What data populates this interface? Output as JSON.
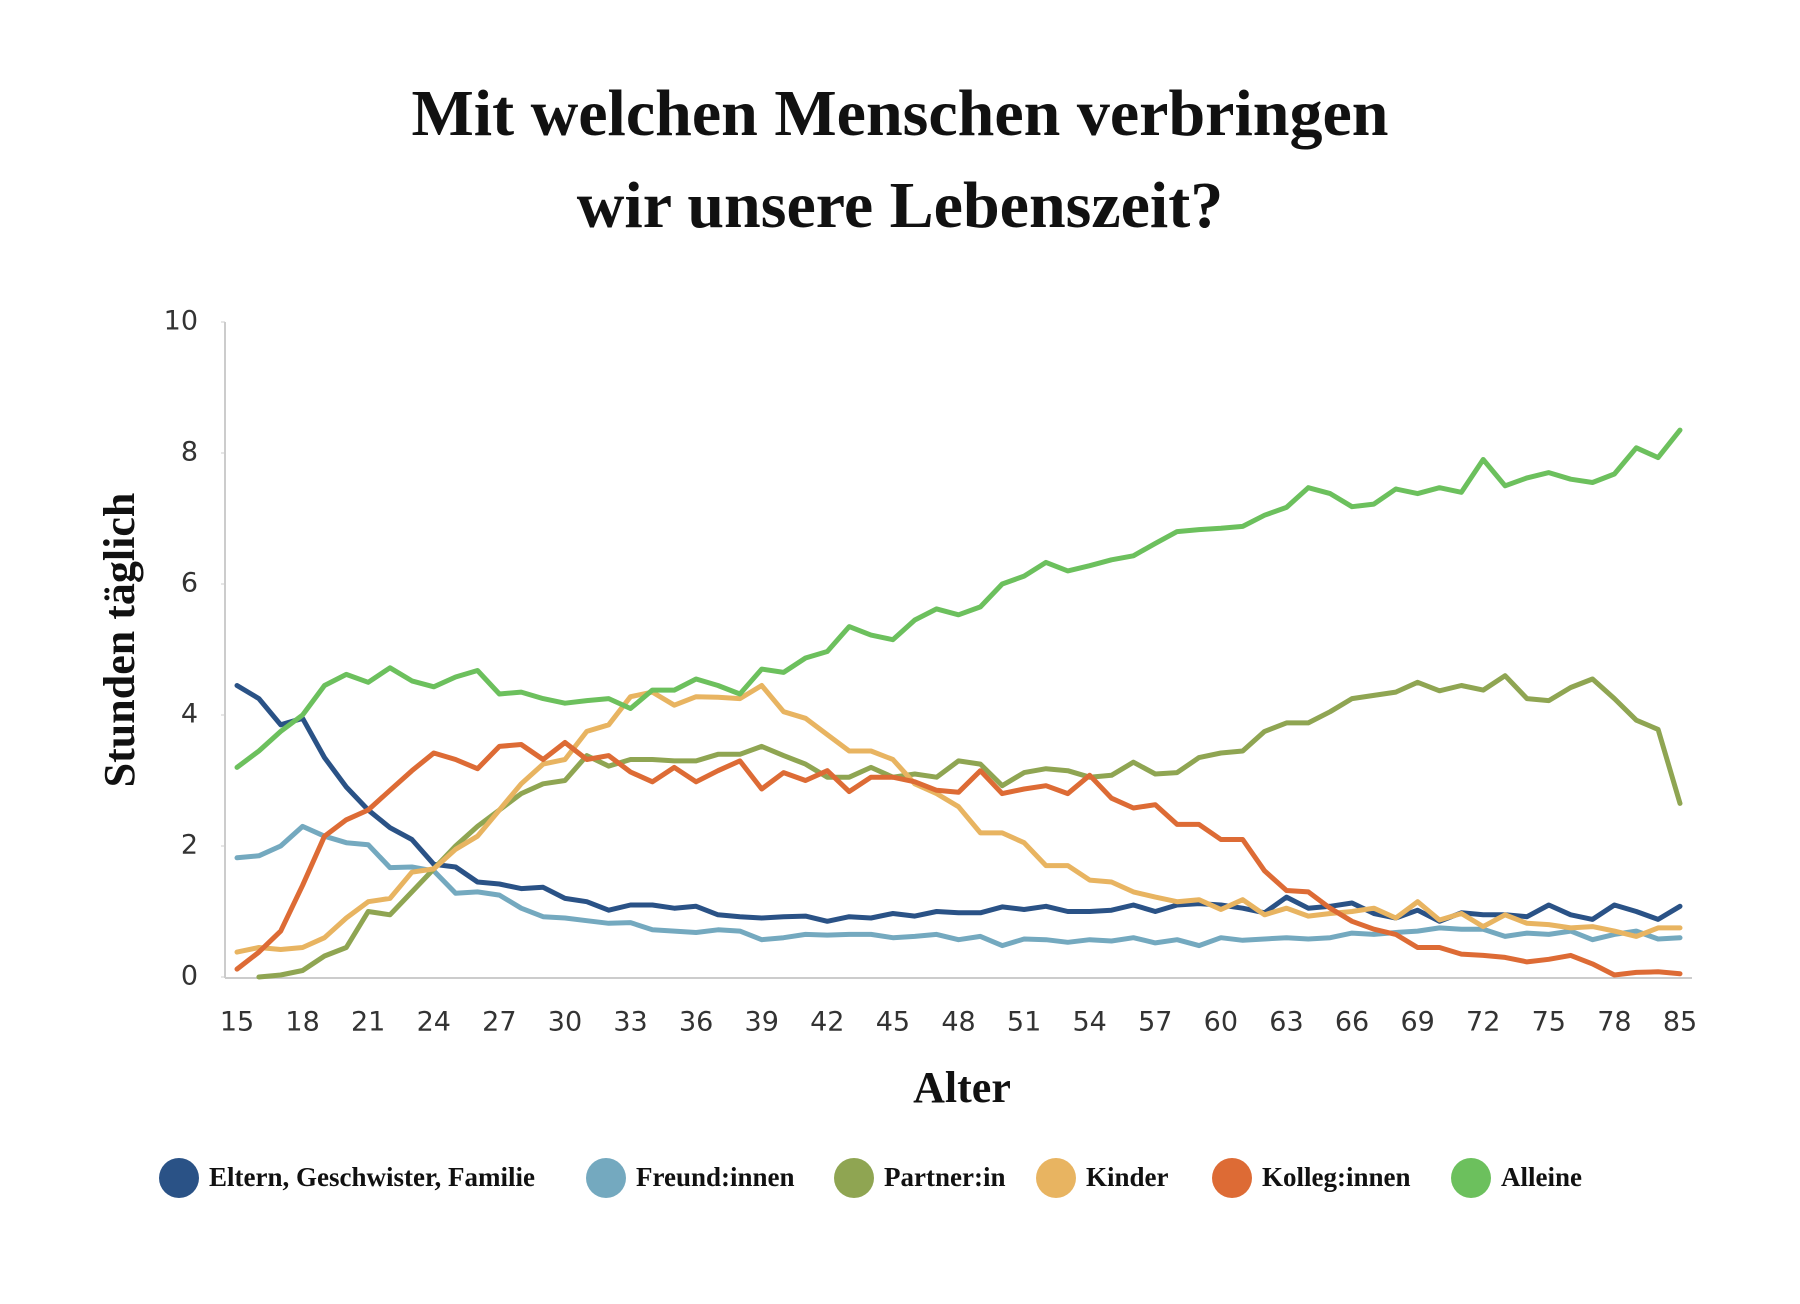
{
  "chart_data": {
    "type": "line",
    "title": [
      "Mit welchen Menschen verbringen",
      "wir unsere Lebenszeit?"
    ],
    "x_label": "Alter",
    "y_label": "Stunden täglich",
    "categories": [
      "15",
      null,
      null,
      "18",
      null,
      null,
      "21",
      null,
      null,
      "24",
      null,
      null,
      "27",
      null,
      null,
      "30",
      null,
      null,
      "33",
      null,
      null,
      "36",
      null,
      null,
      "39",
      null,
      null,
      "42",
      null,
      null,
      "45",
      null,
      null,
      "48",
      null,
      null,
      "51",
      null,
      null,
      "54",
      null,
      null,
      "57",
      null,
      null,
      "60",
      null,
      null,
      "63",
      null,
      null,
      "66",
      null,
      null,
      "69",
      null,
      null,
      "72",
      null,
      null,
      "75",
      null,
      null,
      "78",
      null,
      null,
      "85"
    ],
    "ylim": [
      0,
      10
    ],
    "yticks": [
      0,
      2,
      4,
      6,
      8,
      10
    ],
    "grid": false,
    "legend": "bottom",
    "series": [
      {
        "name": "Eltern, Geschwister, Familie",
        "color": "#2a5286",
        "values": [
          4.45,
          4.25,
          3.85,
          3.95,
          3.35,
          2.9,
          2.55,
          2.28,
          2.1,
          1.72,
          1.68,
          1.45,
          1.42,
          1.35,
          1.37,
          1.2,
          1.15,
          1.02,
          1.1,
          1.1,
          1.05,
          1.08,
          0.95,
          0.92,
          0.9,
          0.92,
          0.93,
          0.85,
          0.92,
          0.9,
          0.97,
          0.93,
          1.0,
          0.98,
          0.98,
          1.07,
          1.03,
          1.08,
          1.0,
          1.0,
          1.02,
          1.1,
          1.0,
          1.1,
          1.12,
          1.1,
          1.05,
          0.98,
          1.22,
          1.05,
          1.08,
          1.13,
          0.97,
          0.9,
          1.02,
          0.85,
          0.98,
          0.95,
          0.95,
          0.92,
          1.1,
          0.95,
          0.88,
          1.1,
          1.0,
          0.88,
          1.08
        ]
      },
      {
        "name": "Freund:innen",
        "color": "#74a9bf",
        "values": [
          1.82,
          1.85,
          2.0,
          2.3,
          2.15,
          2.05,
          2.02,
          1.67,
          1.68,
          1.62,
          1.28,
          1.3,
          1.25,
          1.05,
          0.92,
          0.9,
          0.86,
          0.82,
          0.83,
          0.72,
          0.7,
          0.68,
          0.72,
          0.7,
          0.57,
          0.6,
          0.65,
          0.64,
          0.65,
          0.65,
          0.6,
          0.62,
          0.65,
          0.57,
          0.62,
          0.48,
          0.58,
          0.57,
          0.53,
          0.57,
          0.55,
          0.6,
          0.52,
          0.57,
          0.48,
          0.6,
          0.56,
          0.58,
          0.6,
          0.58,
          0.6,
          0.67,
          0.65,
          0.68,
          0.7,
          0.75,
          0.73,
          0.73,
          0.62,
          0.67,
          0.65,
          0.7,
          0.57,
          0.65,
          0.7,
          0.58,
          0.6
        ]
      },
      {
        "name": "Partner:in",
        "color": "#8fa552",
        "values": [
          null,
          0.0,
          0.03,
          0.1,
          0.32,
          0.45,
          1.0,
          0.95,
          1.3,
          1.65,
          2.0,
          2.3,
          2.55,
          2.8,
          2.95,
          3.0,
          3.38,
          3.22,
          3.32,
          3.32,
          3.3,
          3.3,
          3.4,
          3.4,
          3.52,
          3.38,
          3.25,
          3.05,
          3.05,
          3.2,
          3.05,
          3.1,
          3.05,
          3.3,
          3.25,
          2.92,
          3.12,
          3.18,
          3.15,
          3.05,
          3.08,
          3.28,
          3.1,
          3.12,
          3.35,
          3.42,
          3.45,
          3.75,
          3.88,
          3.88,
          4.05,
          4.25,
          4.3,
          4.35,
          4.5,
          4.37,
          4.45,
          4.38,
          4.6,
          4.25,
          4.22,
          4.42,
          4.55,
          4.25,
          3.92,
          3.78,
          2.65
        ]
      },
      {
        "name": "Kinder",
        "color": "#e8b461",
        "values": [
          0.38,
          0.45,
          0.42,
          0.45,
          0.6,
          0.9,
          1.15,
          1.2,
          1.6,
          1.65,
          1.95,
          2.15,
          2.55,
          2.95,
          3.25,
          3.32,
          3.75,
          3.85,
          4.28,
          4.35,
          4.15,
          4.28,
          4.27,
          4.25,
          4.45,
          4.05,
          3.95,
          3.7,
          3.45,
          3.45,
          3.32,
          2.95,
          2.8,
          2.6,
          2.2,
          2.2,
          2.05,
          1.7,
          1.7,
          1.48,
          1.45,
          1.3,
          1.22,
          1.15,
          1.18,
          1.03,
          1.18,
          0.95,
          1.05,
          0.93,
          0.97,
          1.0,
          1.05,
          0.9,
          1.15,
          0.87,
          0.97,
          0.77,
          0.95,
          0.82,
          0.8,
          0.75,
          0.77,
          0.7,
          0.62,
          0.75,
          0.75
        ]
      },
      {
        "name": "Kolleg:innen",
        "color": "#dd6b35",
        "values": [
          0.12,
          0.38,
          0.7,
          1.4,
          2.15,
          2.4,
          2.55,
          2.85,
          3.15,
          3.42,
          3.32,
          3.18,
          3.52,
          3.55,
          3.32,
          3.58,
          3.32,
          3.38,
          3.13,
          2.98,
          3.2,
          2.98,
          3.15,
          3.3,
          2.87,
          3.12,
          3.0,
          3.15,
          2.83,
          3.05,
          3.05,
          2.98,
          2.85,
          2.82,
          3.15,
          2.8,
          2.87,
          2.92,
          2.8,
          3.08,
          2.73,
          2.58,
          2.63,
          2.33,
          2.33,
          2.1,
          2.1,
          1.62,
          1.32,
          1.3,
          1.05,
          0.85,
          0.73,
          0.65,
          0.45,
          0.45,
          0.35,
          0.33,
          0.3,
          0.23,
          0.27,
          0.33,
          0.2,
          0.03,
          0.07,
          0.08,
          0.05
        ]
      },
      {
        "name": "Alleine",
        "color": "#6cc05d",
        "values": [
          3.2,
          3.45,
          3.75,
          4.0,
          4.45,
          4.62,
          4.5,
          4.72,
          4.52,
          4.43,
          4.58,
          4.68,
          4.32,
          4.35,
          4.25,
          4.18,
          4.22,
          4.25,
          4.1,
          4.38,
          4.38,
          4.55,
          4.45,
          4.32,
          4.7,
          4.65,
          4.87,
          4.97,
          5.35,
          5.22,
          5.15,
          5.45,
          5.62,
          5.53,
          5.65,
          6.0,
          6.12,
          6.33,
          6.2,
          6.28,
          6.37,
          6.43,
          6.62,
          6.8,
          6.83,
          6.85,
          6.88,
          7.05,
          7.17,
          7.47,
          7.38,
          7.18,
          7.22,
          7.45,
          7.38,
          7.47,
          7.4,
          7.9,
          7.5,
          7.62,
          7.7,
          7.6,
          7.55,
          7.68,
          8.08,
          7.93,
          8.35
        ]
      }
    ]
  }
}
